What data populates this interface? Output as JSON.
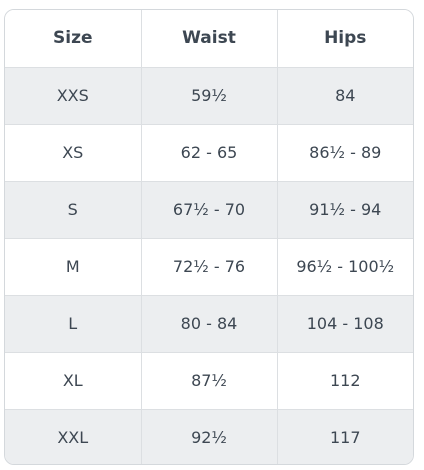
{
  "table": {
    "headers": [
      "Size",
      "Waist",
      "Hips"
    ],
    "rows": [
      {
        "size": "XXS",
        "waist": "59½",
        "hips": "84"
      },
      {
        "size": "XS",
        "waist": "62 - 65",
        "hips": "86½ - 89"
      },
      {
        "size": "S",
        "waist": "67½ - 70",
        "hips": "91½ - 94"
      },
      {
        "size": "M",
        "waist": "72½ - 76",
        "hips": "96½ - 100½"
      },
      {
        "size": "L",
        "waist": "80 - 84",
        "hips": "104 - 108"
      },
      {
        "size": "XL",
        "waist": "87½",
        "hips": "112"
      },
      {
        "size": "XXL",
        "waist": "92½",
        "hips": "117"
      }
    ]
  },
  "colors": {
    "text": "#3d4752",
    "stripe": "#eceef0",
    "border": "#dcdfe2"
  }
}
